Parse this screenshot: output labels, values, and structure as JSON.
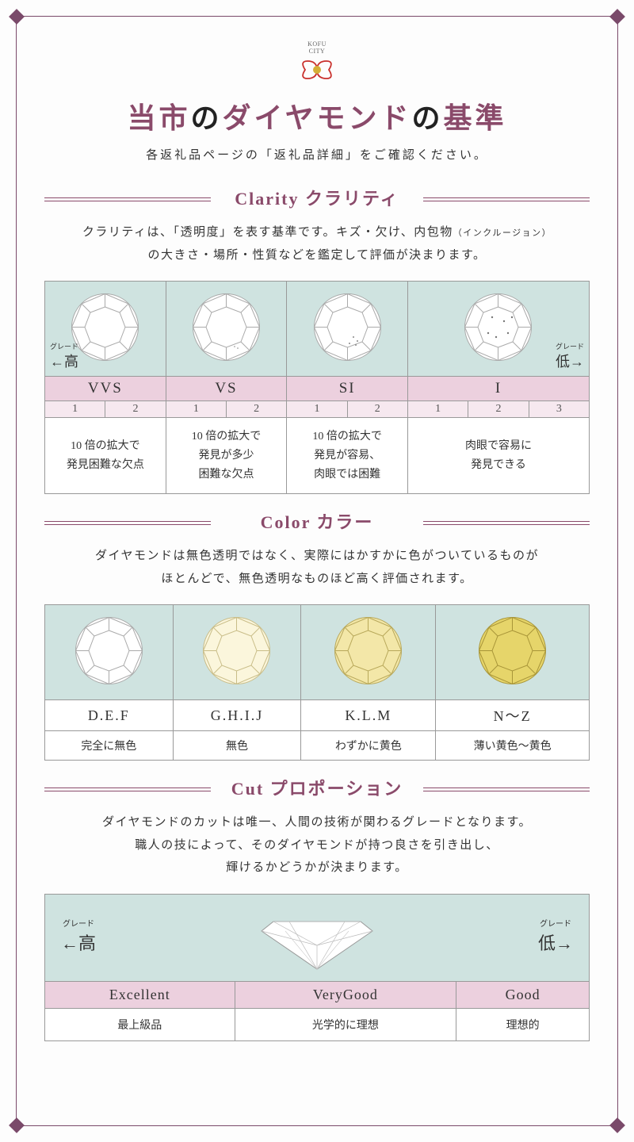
{
  "logo": {
    "line1": "KOFU",
    "line2": "CITY"
  },
  "title": {
    "p1": "当市",
    "p2": "の",
    "p3": "ダイヤモンド",
    "p4": "の",
    "p5": "基準"
  },
  "subtitle": "各返礼品ページの「返礼品詳細」をご確認ください。",
  "clarity": {
    "header": "Clarity クラリティ",
    "desc1": "クラリティは、「透明度」を表す基準です。キズ・欠け、内包物",
    "desc1_small": "（インクルージョン）",
    "desc2": "の大きさ・場所・性質などを鑑定して評価が決まります。",
    "high_label": "高",
    "high_tiny": "グレード",
    "high_arrow": "←",
    "low_label": "低",
    "low_tiny": "グレード",
    "low_arrow": "→",
    "grades": [
      "VVS",
      "VS",
      "SI",
      "I"
    ],
    "subs": [
      [
        "1",
        "2"
      ],
      [
        "1",
        "2"
      ],
      [
        "1",
        "2"
      ],
      [
        "1",
        "2",
        "3"
      ]
    ],
    "descs": [
      "10 倍の拡大で\n発見困難な欠点",
      "10 倍の拡大で\n発見が多少\n困難な欠点",
      "10 倍の拡大で\n発見が容易、\n肉眼では困難",
      "肉眼で容易に\n発見できる"
    ]
  },
  "color": {
    "header": "Color カラー",
    "desc1": "ダイヤモンドは無色透明ではなく、実際にはかすかに色がついているものが",
    "desc2": "ほとんどで、無色透明なものほど高く評価されます。",
    "grades": [
      "D.E.F",
      "G.H.I.J",
      "K.L.M",
      "N～Z"
    ],
    "descs": [
      "完全に無色",
      "無色",
      "わずかに黄色",
      "薄い黄色～黄色"
    ],
    "fills": [
      "#ffffff",
      "#fbf6dc",
      "#f3e7a8",
      "#e6d56a"
    ]
  },
  "cut": {
    "header": "Cut プロポーション",
    "desc1": "ダイヤモンドのカットは唯一、人間の技術が関わるグレードとなります。",
    "desc2": "職人の技によって、そのダイヤモンドが持つ良さを引き出し、",
    "desc3": "輝けるかどうかが決まります。",
    "high_label": "高",
    "high_tiny": "グレード",
    "high_arrow": "←",
    "low_label": "低",
    "low_tiny": "グレード",
    "low_arrow": "→",
    "grades": [
      "Excellent",
      "VeryGood",
      "Good"
    ],
    "descs": [
      "最上級品",
      "光学的に理想",
      "理想的"
    ]
  },
  "colors": {
    "accent": "#8a4a6a",
    "mint": "#cfe3e0",
    "pink": "#ecd0de",
    "pink_light": "#f6e8ef"
  }
}
